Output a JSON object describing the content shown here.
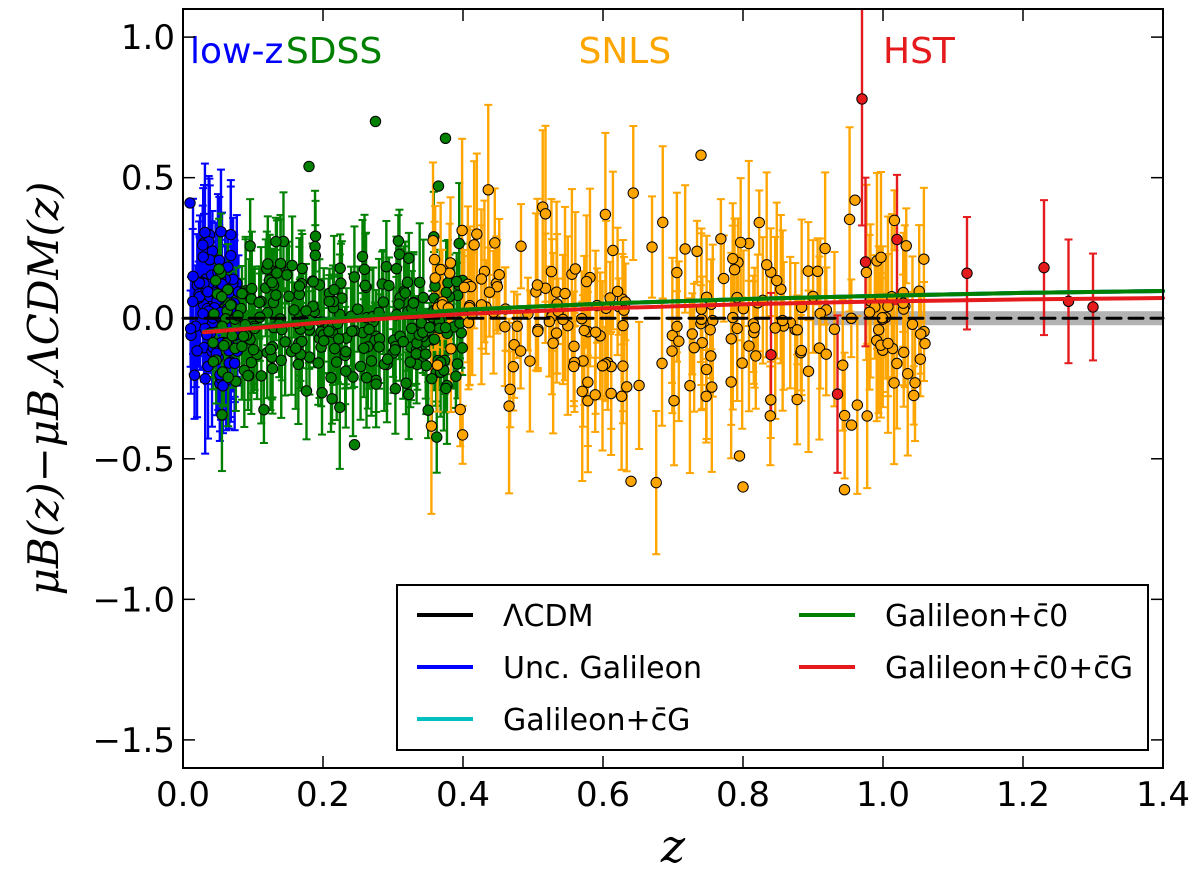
{
  "chart_data": {
    "type": "scatter",
    "xlabel": "z",
    "ylabel": "μB(z)−μB,ΛCDM(z)",
    "xlim": [
      0.0,
      1.4
    ],
    "ylim": [
      -1.6,
      1.1
    ],
    "xticks": [
      "0.0",
      "0.2",
      "0.4",
      "0.6",
      "0.8",
      "1.0",
      "1.2",
      "1.4"
    ],
    "yticks": [
      "−1.5",
      "−1.0",
      "−0.5",
      "0.0",
      "0.5",
      "1.0"
    ],
    "xtick_values": [
      0.0,
      0.2,
      0.4,
      0.6,
      0.8,
      1.0,
      1.2,
      1.4
    ],
    "ytick_values": [
      -1.5,
      -1.0,
      -0.5,
      0.0,
      0.5,
      1.0
    ],
    "grid": false,
    "legend_position": "bottom-right",
    "samples": [
      {
        "name": "low-z",
        "color": "#0000ff",
        "zrange": [
          0.01,
          0.08
        ],
        "n": 100,
        "sd": 0.15,
        "err": [
          0.12,
          0.28
        ],
        "point_color": "#0000ff"
      },
      {
        "name": "SDSS",
        "color": "#008000",
        "zrange": [
          0.04,
          0.4
        ],
        "n": 260,
        "sd": 0.15,
        "err": [
          0.08,
          0.22
        ],
        "point_color": "#008000"
      },
      {
        "name": "SNLS",
        "color": "#ffa500",
        "zrange": [
          0.35,
          1.06
        ],
        "n": 220,
        "sd": 0.2,
        "err": [
          0.1,
          0.33
        ],
        "point_color": "#ffa500"
      },
      {
        "name": "HST",
        "color": "#e41a1c",
        "point_color": "#e41a1c",
        "points": [
          {
            "z": 0.84,
            "y": -0.13,
            "err": 0.22
          },
          {
            "z": 0.935,
            "y": -0.27,
            "err": 0.28
          },
          {
            "z": 0.97,
            "y": 0.78,
            "err": 0.45
          },
          {
            "z": 0.975,
            "y": 0.2,
            "err": 0.3
          },
          {
            "z": 1.02,
            "y": 0.28,
            "err": 0.23
          },
          {
            "z": 1.12,
            "y": 0.16,
            "err": 0.2
          },
          {
            "z": 1.23,
            "y": 0.18,
            "err": 0.24
          },
          {
            "z": 1.265,
            "y": 0.06,
            "err": 0.22
          },
          {
            "z": 1.3,
            "y": 0.04,
            "err": 0.19
          }
        ]
      }
    ],
    "highlight_points": [
      {
        "z": 0.01,
        "y": 0.41
      },
      {
        "z": 0.18,
        "y": 0.54
      },
      {
        "z": 0.275,
        "y": 0.7
      },
      {
        "z": 0.365,
        "y": 0.47
      },
      {
        "z": 0.375,
        "y": 0.64
      },
      {
        "z": 0.245,
        "y": -0.45
      },
      {
        "z": 0.64,
        "y": -0.58
      },
      {
        "z": 0.795,
        "y": -0.49
      },
      {
        "z": 0.8,
        "y": -0.6
      },
      {
        "z": 0.945,
        "y": -0.61
      },
      {
        "z": 0.955,
        "y": -0.38
      },
      {
        "z": 0.74,
        "y": 0.58
      },
      {
        "z": 0.96,
        "y": 0.42
      },
      {
        "z": 1.06,
        "y": -0.09
      }
    ],
    "series": [
      {
        "name": "ΛCDM",
        "color": "#000000",
        "style": "dashed",
        "x": [
          0.0,
          0.35,
          0.7,
          1.05,
          1.4
        ],
        "y": [
          0.0,
          0.0,
          0.0,
          0.0,
          0.0
        ],
        "band": 0.025
      },
      {
        "name": "Unc. Galileon",
        "color": "#0000ff",
        "x": [
          0.03,
          0.2,
          0.4,
          0.6,
          0.8,
          1.0,
          1.2,
          1.4
        ],
        "y": [
          -0.048,
          -0.005,
          0.03,
          0.052,
          0.068,
          0.08,
          0.09,
          0.097
        ]
      },
      {
        "name": "Galileon+c̄G",
        "color": "#00bfbf",
        "x": [
          0.03,
          0.2,
          0.4,
          0.6,
          0.8,
          1.0,
          1.2,
          1.4
        ],
        "y": [
          -0.048,
          -0.005,
          0.03,
          0.052,
          0.068,
          0.08,
          0.09,
          0.097
        ]
      },
      {
        "name": "Galileon+c̄0",
        "color": "#008000",
        "x": [
          0.03,
          0.2,
          0.4,
          0.6,
          0.8,
          1.0,
          1.2,
          1.4
        ],
        "y": [
          -0.048,
          -0.005,
          0.03,
          0.052,
          0.068,
          0.08,
          0.09,
          0.097
        ]
      },
      {
        "name": "Galileon+c̄0+c̄G",
        "color": "#e41a1c",
        "x": [
          0.03,
          0.2,
          0.4,
          0.6,
          0.8,
          1.0,
          1.2,
          1.4
        ],
        "y": [
          -0.05,
          -0.015,
          0.015,
          0.035,
          0.05,
          0.06,
          0.067,
          0.072
        ]
      }
    ],
    "legend": [
      {
        "label": "ΛCDM",
        "color": "#000000"
      },
      {
        "label": "Unc. Galileon",
        "color": "#0000ff"
      },
      {
        "label": "Galileon+c̄G",
        "color": "#00bfbf"
      },
      {
        "label": "Galileon+c̄0",
        "color": "#008000"
      },
      {
        "label": "Galileon+c̄0+c̄G",
        "color": "#e41a1c"
      }
    ],
    "annotations": [
      {
        "text": "low-z",
        "color": "#0000ff",
        "x": 0.01,
        "y": 0.95
      },
      {
        "text": "SDSS",
        "color": "#008000",
        "x": 0.147,
        "y": 0.95
      },
      {
        "text": "SNLS",
        "color": "#ffa500",
        "x": 0.565,
        "y": 0.95
      },
      {
        "text": "HST",
        "color": "#e41a1c",
        "x": 1.0,
        "y": 0.95
      }
    ]
  }
}
